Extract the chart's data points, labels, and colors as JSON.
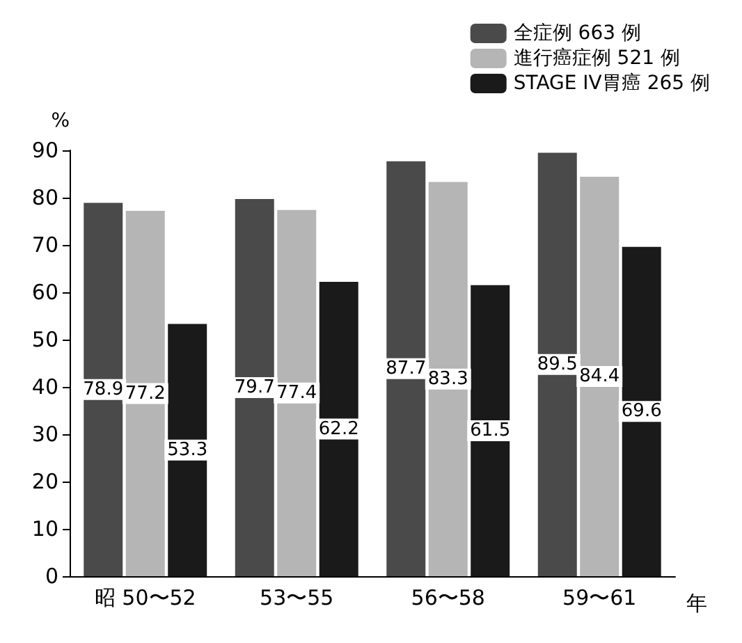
{
  "chart_data": {
    "type": "bar",
    "categories": [
      "昭 50〜52",
      "53〜55",
      "56〜58",
      "59〜61"
    ],
    "xlabel": "年",
    "ylabel": "%",
    "series": [
      {
        "name": "全症例 663 例",
        "color": "#4a4a4a",
        "values": [
          78.9,
          79.7,
          87.7,
          89.5
        ]
      },
      {
        "name": "進行癌症例 521 例",
        "color": "#b5b5b5",
        "values": [
          77.2,
          77.4,
          83.3,
          84.4
        ]
      },
      {
        "name": "STAGE IV胃癌 265 例",
        "color": "#1a1a1a",
        "values": [
          53.3,
          62.2,
          61.5,
          69.6
        ]
      }
    ],
    "ylim": [
      0,
      90
    ],
    "yticks": [
      0,
      10,
      20,
      30,
      40,
      50,
      60,
      70,
      80,
      90
    ],
    "data_labels": true,
    "legend": "top right",
    "grid": false
  }
}
